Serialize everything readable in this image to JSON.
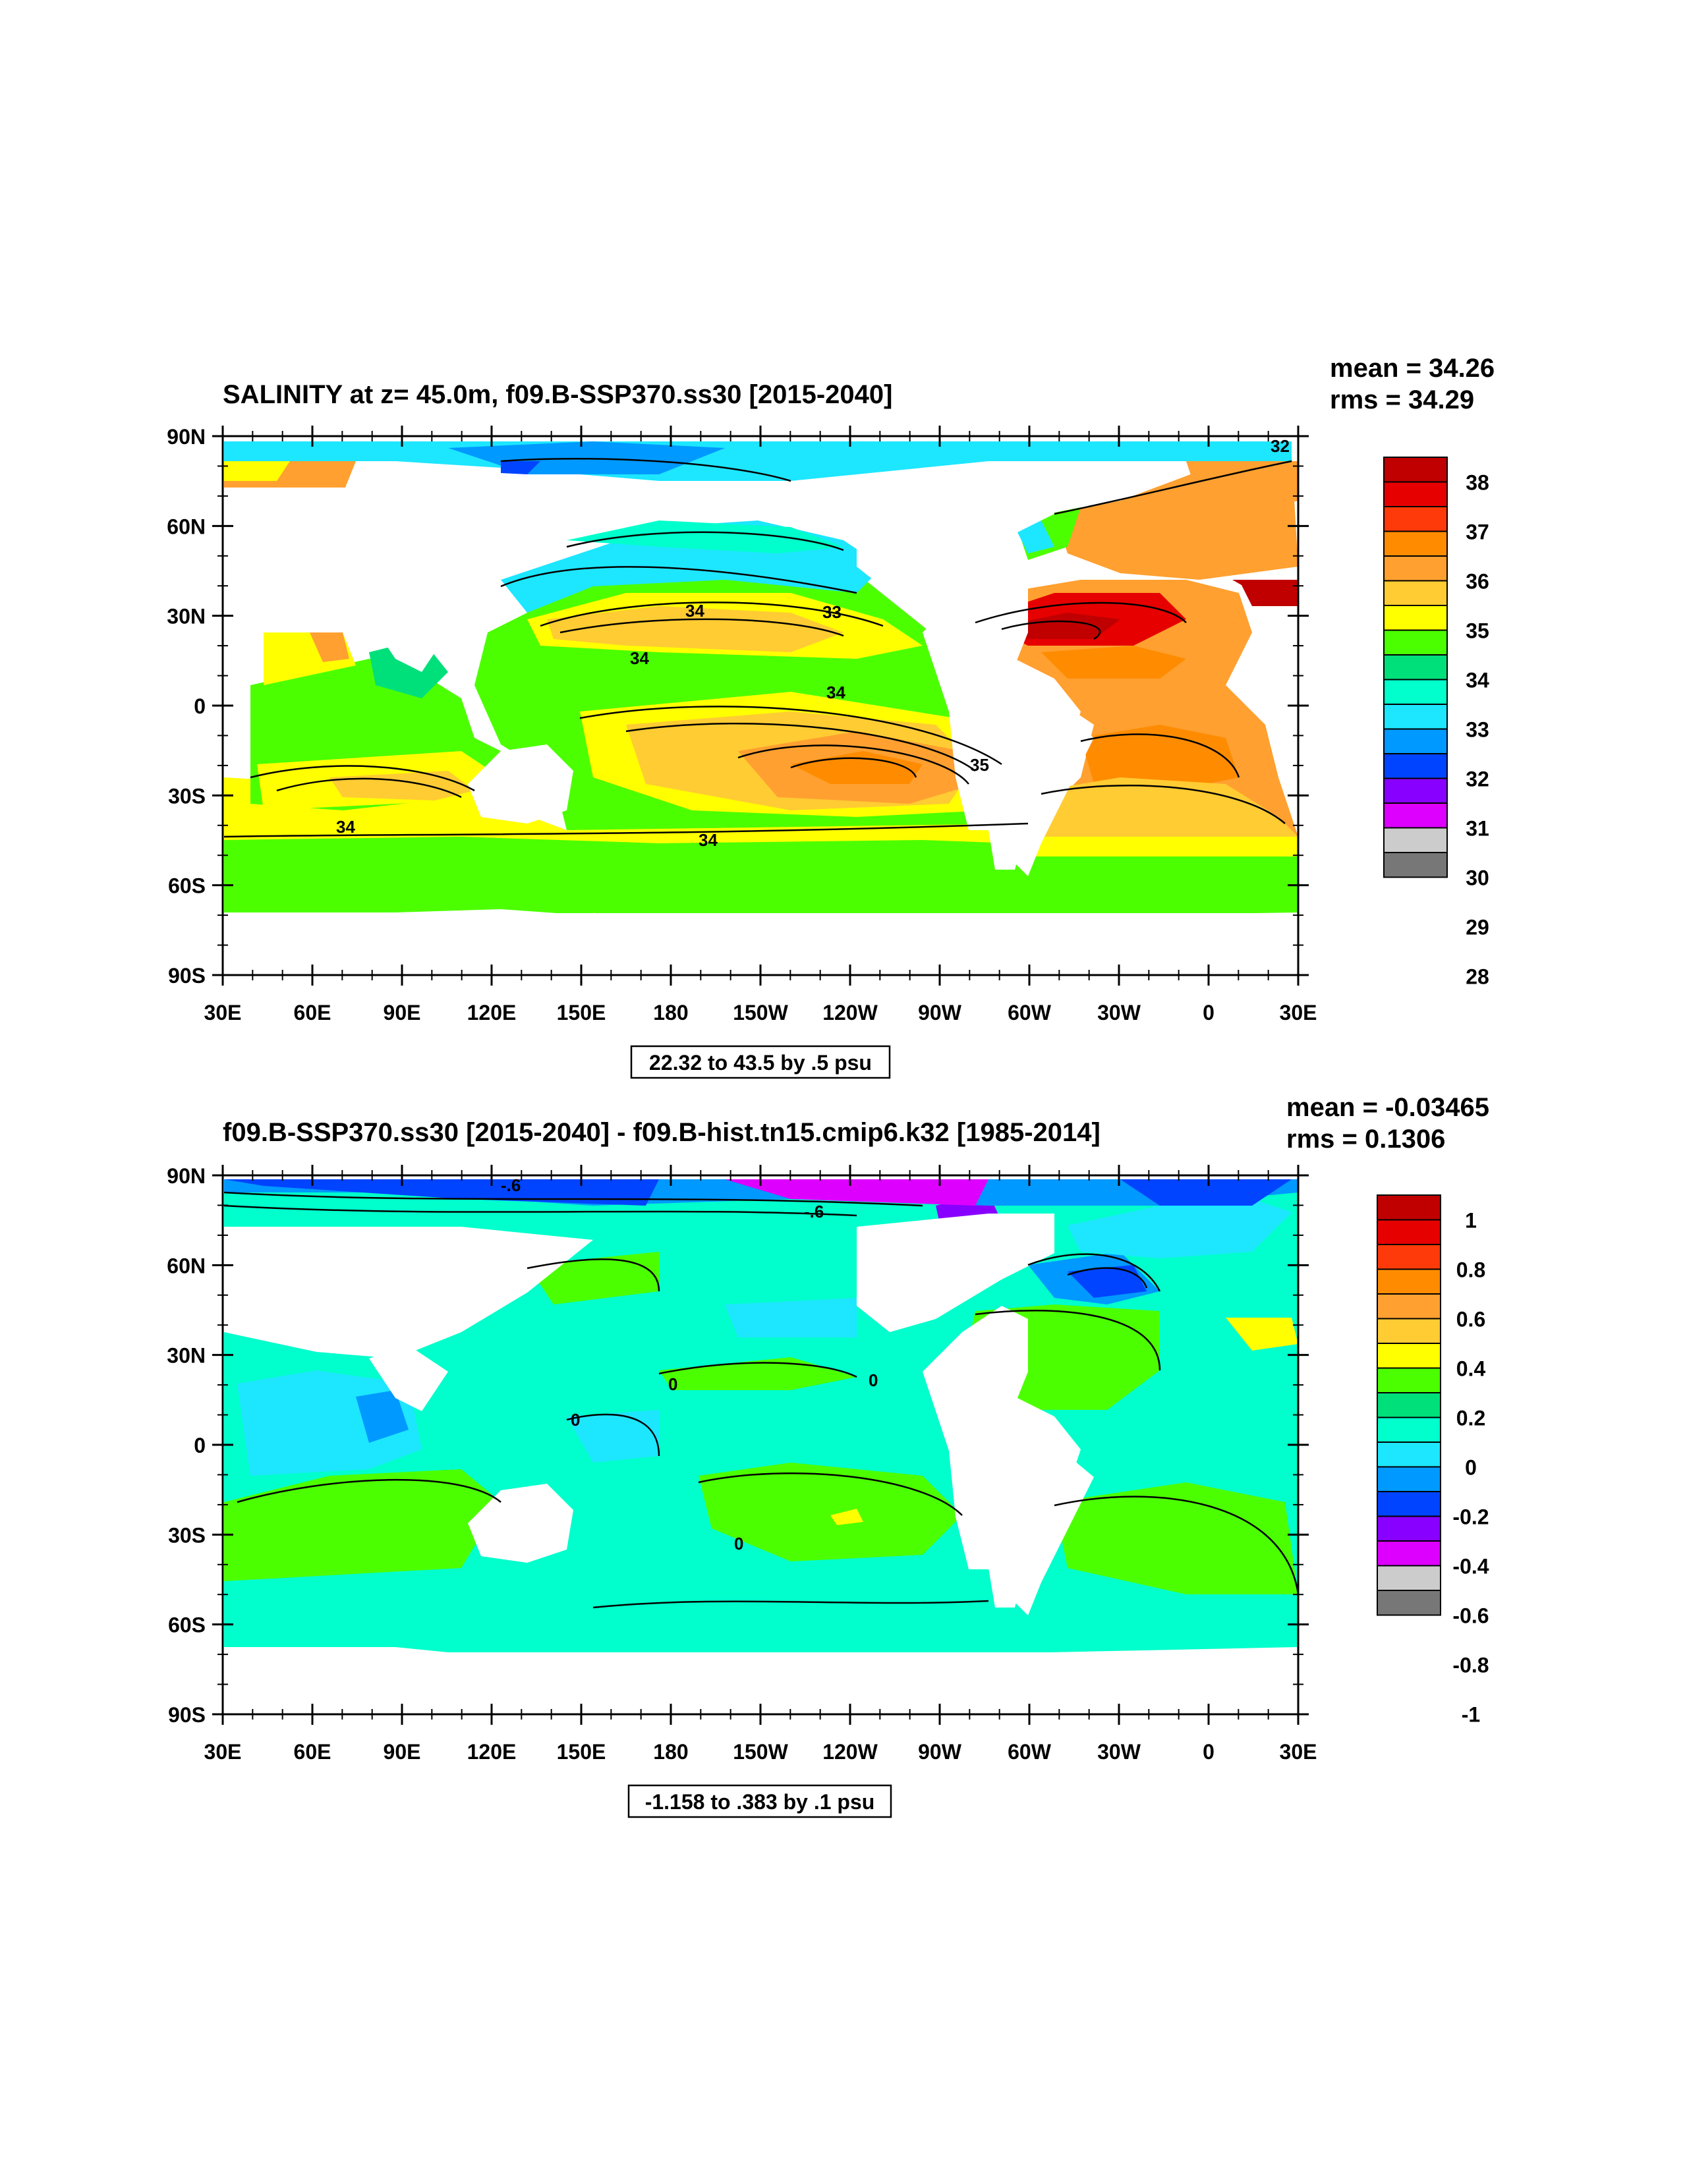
{
  "colors": {
    "ocean_fill": "#ffffff",
    "frame": "#000000"
  },
  "panels": [
    {
      "title": "SALINITY at z=  45.0m, f09.B-SSP370.ss30 [2015-2040]",
      "stats": {
        "mean": "mean = 34.26",
        "rms": "rms = 34.29"
      },
      "range_label": "22.32 to 43.5 by .5 psu",
      "colorbar": {
        "labels": [
          "38",
          "37",
          "36",
          "35",
          "34",
          "33",
          "32",
          "31",
          "30",
          "29",
          "28"
        ],
        "colors": [
          "#c00000",
          "#e60000",
          "#ff3a0a",
          "#ff8c00",
          "#ffa030",
          "#ffcc33",
          "#ffff00",
          "#4cff00",
          "#00e07a",
          "#00ffcc",
          "#1de6ff",
          "#0099ff",
          "#0044ff",
          "#8800ff",
          "#dd00ff",
          "#cccccc",
          "#777777"
        ]
      },
      "contour_labels": [
        "32",
        "34",
        "33",
        "34",
        "34",
        "35",
        "34",
        "34"
      ]
    },
    {
      "title": "f09.B-SSP370.ss30 [2015-2040] - f09.B-hist.tn15.cmip6.k32 [1985-2014]",
      "stats": {
        "mean": "mean = -0.03465",
        "rms": "rms = 0.1306"
      },
      "range_label": "-1.158 to .383 by .1 psu",
      "colorbar": {
        "labels": [
          "1",
          "0.8",
          "0.6",
          "0.4",
          "0.2",
          "0",
          "-0.2",
          "-0.4",
          "-0.6",
          "-0.8",
          "-1"
        ],
        "colors": [
          "#c00000",
          "#e60000",
          "#ff3a0a",
          "#ff8c00",
          "#ffa030",
          "#ffcc33",
          "#ffff00",
          "#4cff00",
          "#00e07a",
          "#00ffcc",
          "#1de6ff",
          "#0099ff",
          "#0044ff",
          "#8800ff",
          "#dd00ff",
          "#cccccc",
          "#777777"
        ]
      },
      "contour_labels": [
        "-.6",
        "-.6",
        "0",
        "0",
        "0",
        "0"
      ]
    }
  ],
  "axes": {
    "lat_labels": [
      "90N",
      "60N",
      "30N",
      "0",
      "30S",
      "60S",
      "90S"
    ],
    "lon_labels": [
      "30E",
      "60E",
      "90E",
      "120E",
      "150E",
      "180",
      "150W",
      "120W",
      "90W",
      "60W",
      "30W",
      "0",
      "30E"
    ]
  }
}
